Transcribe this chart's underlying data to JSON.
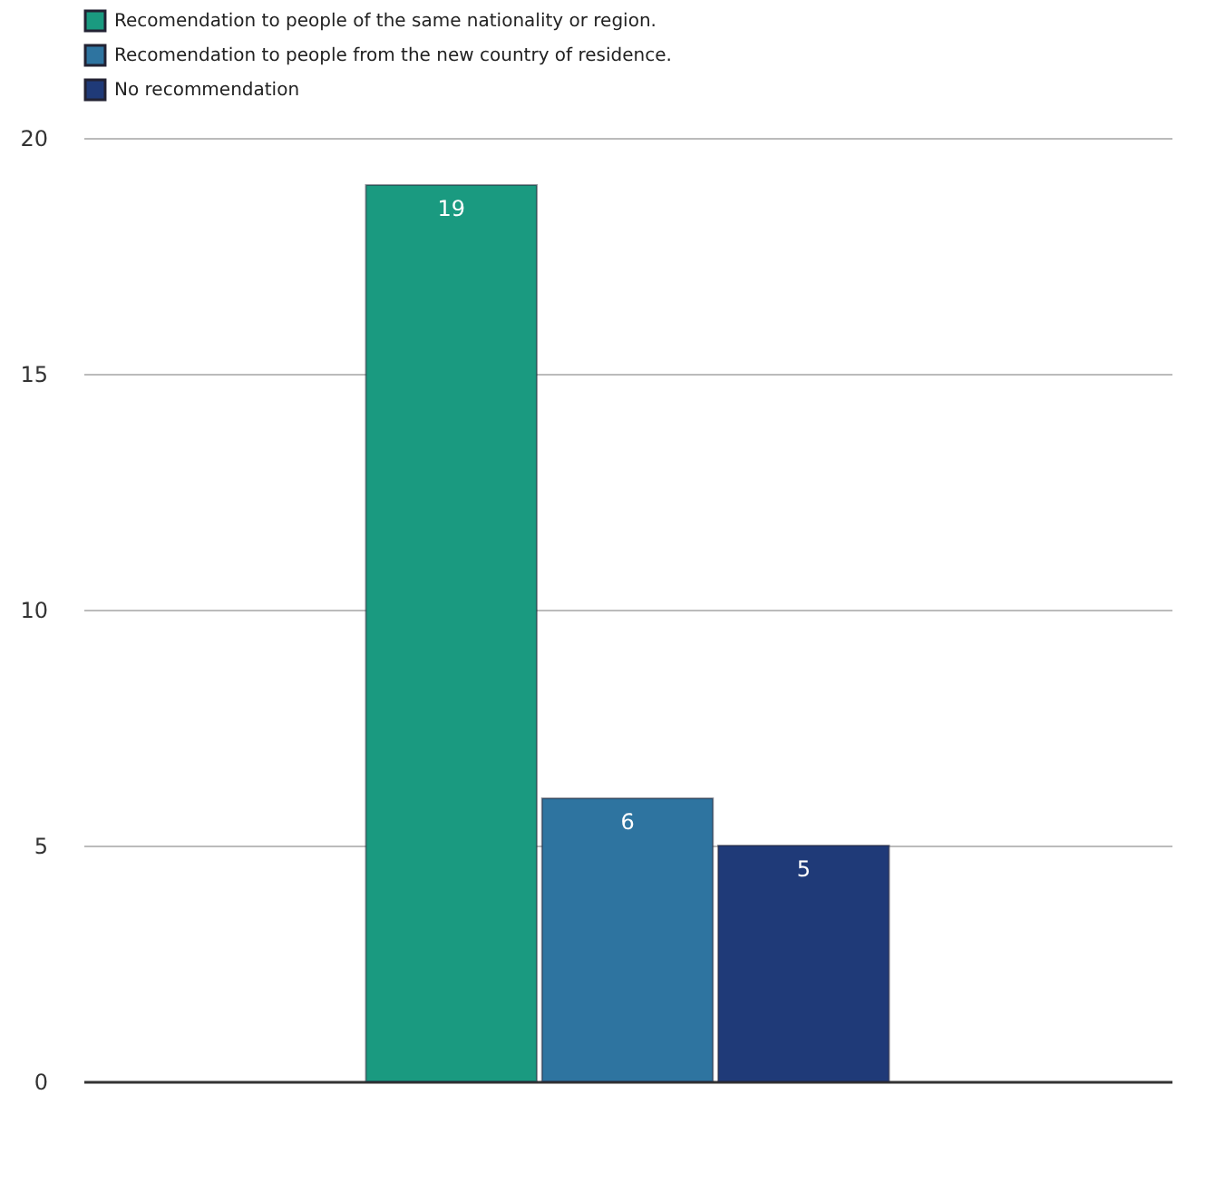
{
  "chart_data": {
    "type": "bar",
    "categories": [
      null
    ],
    "series": [
      {
        "name": "Recomendation to people of the same nationality or region.",
        "color": "#1a9a80",
        "values": [
          19
        ]
      },
      {
        "name": "Recomendation to people from the new country of residence.",
        "color": "#2e74a0",
        "values": [
          6
        ]
      },
      {
        "name": "No recommendation",
        "color": "#1f3a78",
        "values": [
          5
        ]
      }
    ],
    "ylim": [
      0,
      20
    ],
    "yticks": [
      0,
      5,
      10,
      15,
      20
    ],
    "grid": "y",
    "legend": "top",
    "data_labels": true
  }
}
